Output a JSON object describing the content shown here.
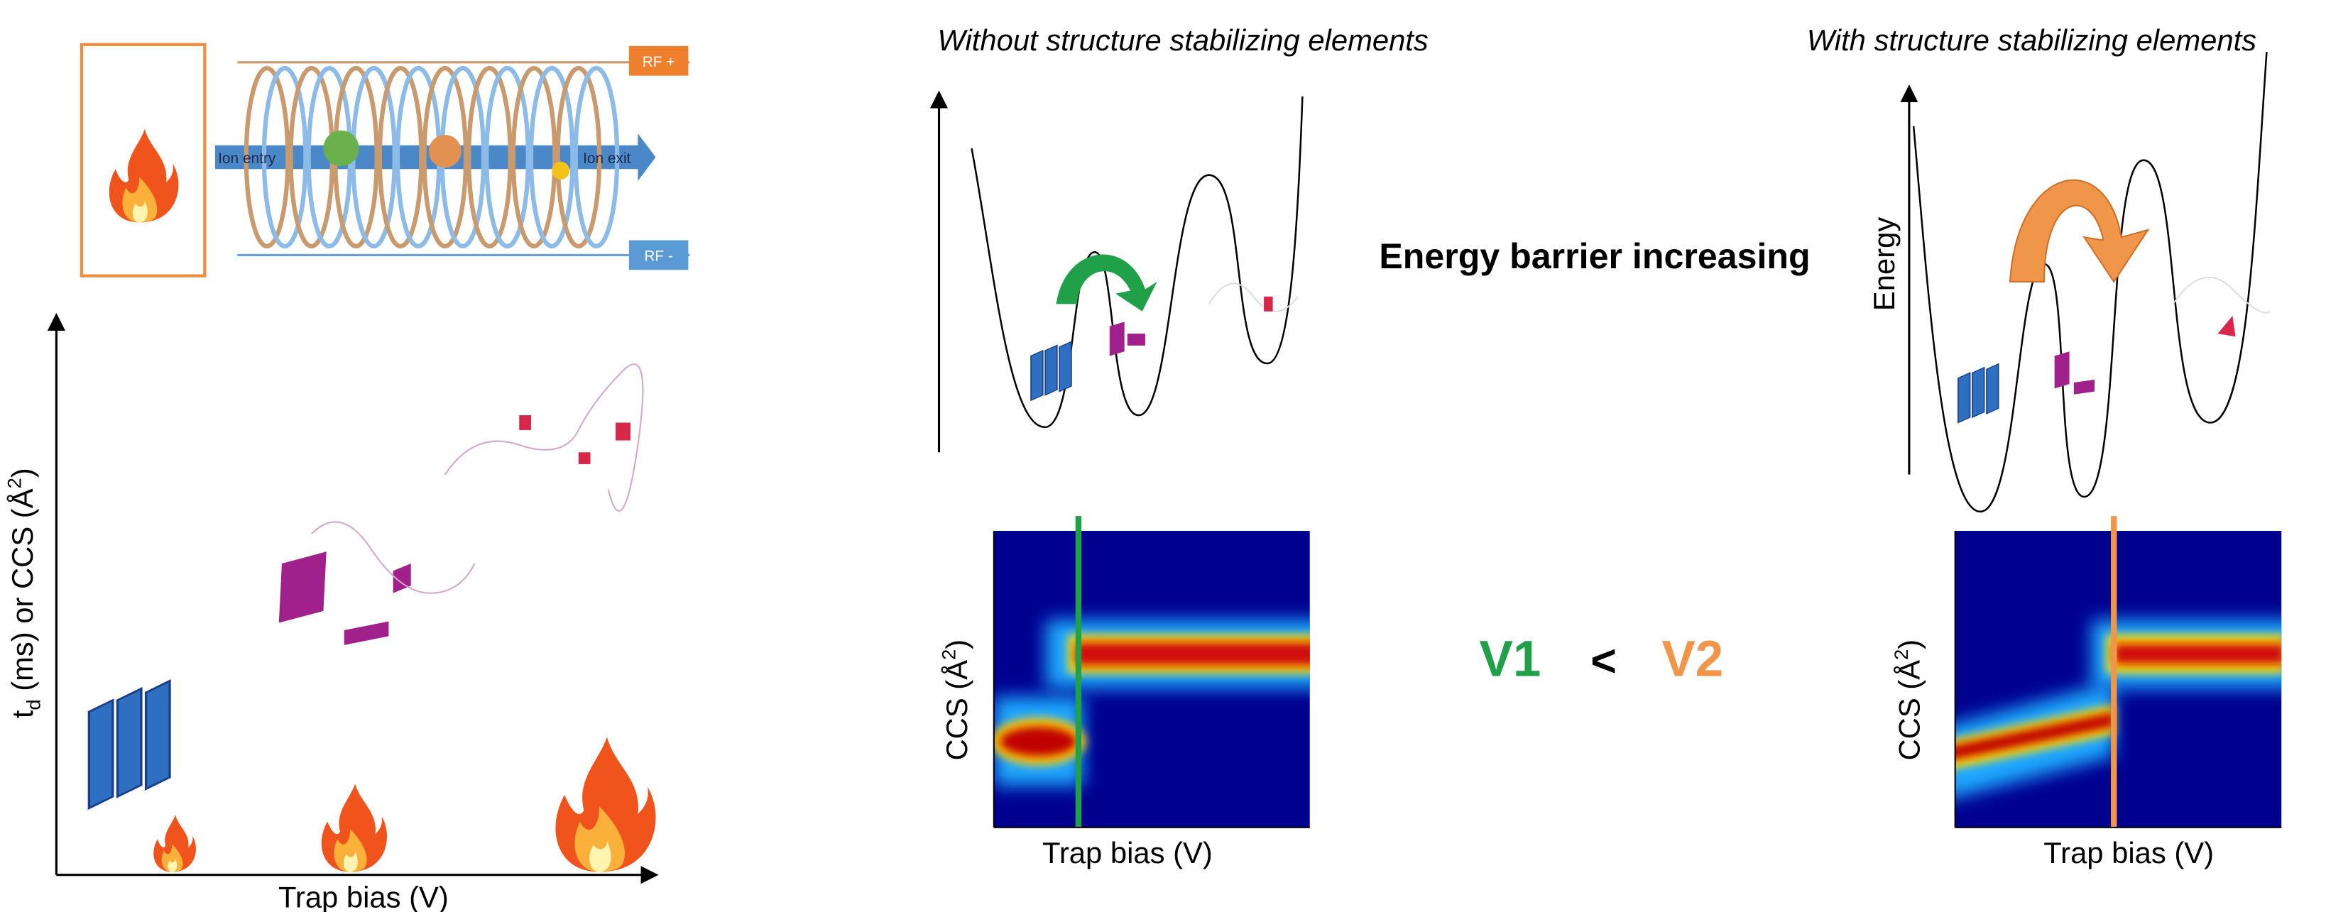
{
  "trap_cell": {
    "rf_plus": "RF +",
    "rf_minus": "RF -",
    "ion_entry": "Ion entry",
    "ion_exit": "Ion exit"
  },
  "left_plot": {
    "y_label": {
      "t": "t",
      "sub": "d",
      "mid": " (ms) or CCS (Å",
      "sup": "2",
      "end": ")"
    },
    "x_label": "Trap bias (V)"
  },
  "panels": [
    {
      "title": "Without structure stabilizing elements",
      "ccs_label": {
        "main": "CCS (Å",
        "sup": "2",
        "end": ")"
      },
      "x_label": "Trap bias (V)"
    },
    {
      "title": "With structure stabilizing elements",
      "energy_label": "Energy",
      "ccs_label": {
        "main": "CCS (Å",
        "sup": "2",
        "end": ")"
      },
      "x_label": "Trap bias (V)"
    }
  ],
  "center": {
    "barrier_text": "Energy barrier increasing",
    "v1": "V1",
    "lt": "<",
    "v2": "V2"
  }
}
